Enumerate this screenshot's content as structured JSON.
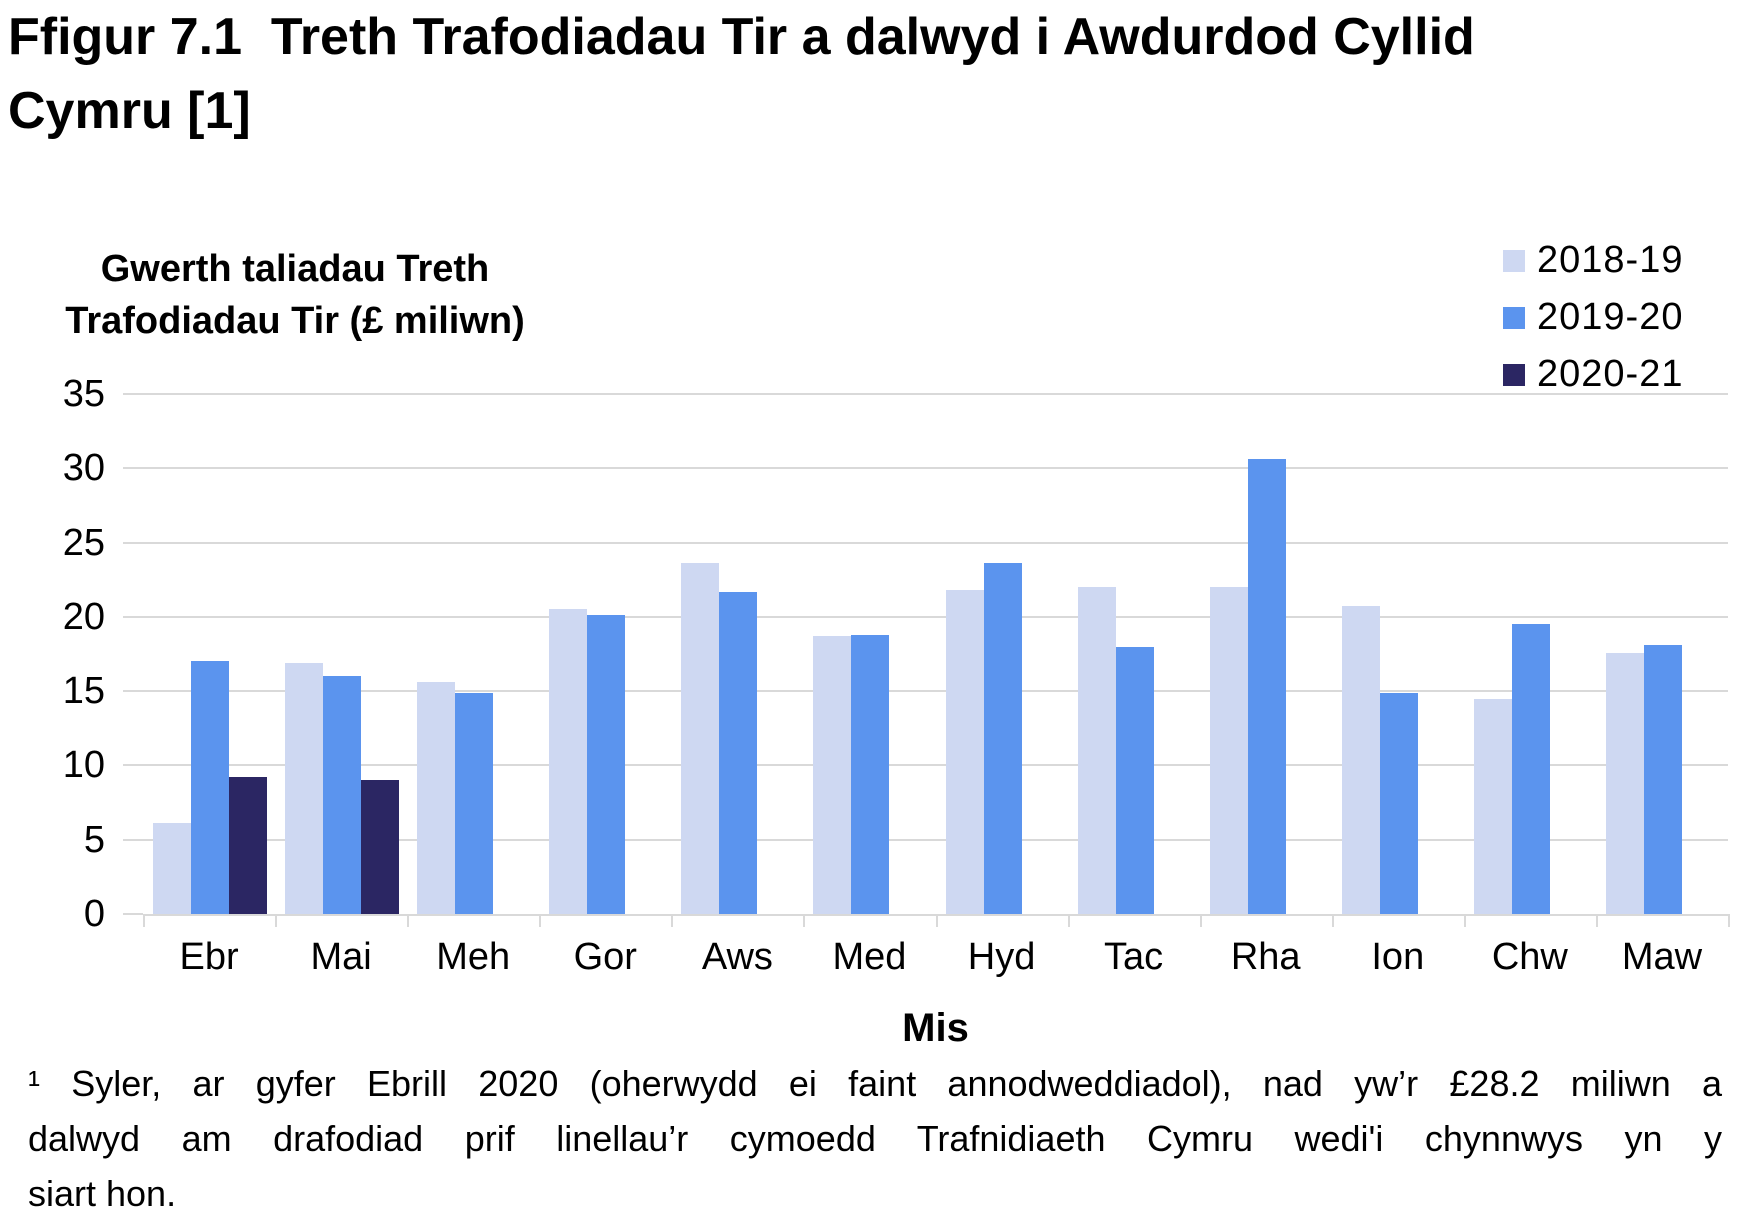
{
  "title": "Ffigur 7.1  Treth Trafodiadau Tir a dalwyd i Awdurdod Cyllid Cymru [1]",
  "chart_data": {
    "type": "bar",
    "y_axis_title_lines": [
      "Gwerth taliadau Treth",
      "Trafodiadau Tir (£ miliwn)"
    ],
    "xlabel": "Mis",
    "categories": [
      "Ebr",
      "Mai",
      "Meh",
      "Gor",
      "Aws",
      "Med",
      "Hyd",
      "Tac",
      "Rha",
      "Ion",
      "Chw",
      "Maw"
    ],
    "series": [
      {
        "name": "2018-19",
        "color": "#CED8F2",
        "values": [
          6.1,
          16.9,
          15.6,
          20.5,
          23.6,
          18.7,
          21.8,
          22.0,
          22.0,
          20.7,
          14.5,
          17.6
        ]
      },
      {
        "name": "2019-20",
        "color": "#5B94EE",
        "values": [
          17.0,
          16.0,
          14.9,
          20.1,
          21.7,
          18.8,
          23.6,
          18.0,
          30.6,
          14.9,
          19.5,
          18.1
        ]
      },
      {
        "name": "2020-21",
        "color": "#2B2663",
        "values": [
          9.2,
          9.0,
          null,
          null,
          null,
          null,
          null,
          null,
          null,
          null,
          null,
          null
        ]
      }
    ],
    "ylim": [
      0,
      35
    ],
    "yticks": [
      0,
      5,
      10,
      15,
      20,
      25,
      30,
      35
    ],
    "grid": true,
    "gridline_color": "#D9D9D9",
    "legend_position": "top-right"
  },
  "footnote_lines": [
    "¹ Syler, ar gyfer Ebrill 2020 (oherwydd ei faint annodweddiadol), nad yw’r £28.2 miliwn a",
    "dalwyd am drafodiad prif linellau’r cymoedd Trafnidiaeth Cymru wedi'i chynnwys yn y",
    "siart hon."
  ]
}
